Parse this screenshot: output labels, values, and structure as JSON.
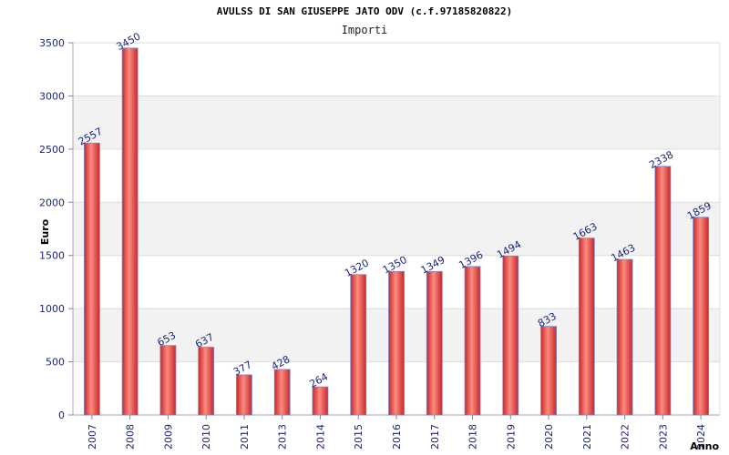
{
  "chart_data": {
    "type": "bar",
    "title": "AVULSS DI SAN GIUSEPPE JATO ODV (c.f.97185820822)",
    "subtitle": "Importi",
    "xlabel": "Anno",
    "ylabel": "Euro",
    "categories": [
      "2007",
      "2008",
      "2009",
      "2010",
      "2011",
      "2013",
      "2014",
      "2015",
      "2016",
      "2017",
      "2018",
      "2019",
      "2020",
      "2021",
      "2022",
      "2023",
      "2024"
    ],
    "values": [
      2557,
      3450,
      653,
      637,
      377,
      428,
      264,
      1320,
      1350,
      1349,
      1396,
      1494,
      833,
      1663,
      1463,
      2338,
      1859
    ],
    "ylim": [
      0,
      3500
    ],
    "yticks": [
      0,
      500,
      1000,
      1500,
      2000,
      2500,
      3000,
      3500
    ],
    "grid": true,
    "colors": {
      "bar": "#e53935",
      "bar_edge": "#7986cb",
      "band": "#f2f2f2",
      "tick_text": "#1a237e"
    }
  }
}
